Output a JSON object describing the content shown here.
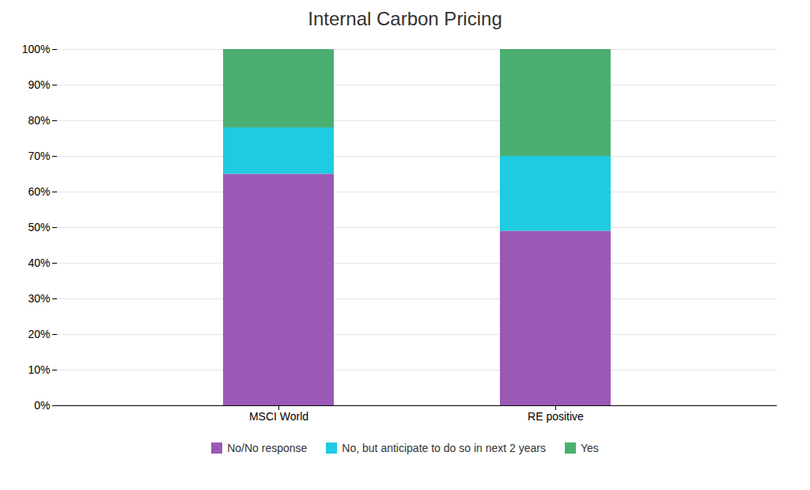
{
  "chart_data": {
    "type": "bar",
    "title": "Internal Carbon Pricing",
    "categories": [
      "MSCI World",
      "RE positive"
    ],
    "series": [
      {
        "name": "No/No response",
        "color": "#9B59B6",
        "values": [
          65,
          49
        ]
      },
      {
        "name": "No, but anticipate to do so in next 2 years",
        "color": "#1ECBE1",
        "values": [
          13,
          21
        ]
      },
      {
        "name": "Yes",
        "color": "#4CAF72",
        "values": [
          22,
          30
        ]
      }
    ],
    "stacked": true,
    "ylim": [
      0,
      100
    ],
    "yticks": [
      {
        "value": 0,
        "label": "0%"
      },
      {
        "value": 10,
        "label": "10%"
      },
      {
        "value": 20,
        "label": "20%"
      },
      {
        "value": 30,
        "label": "30%"
      },
      {
        "value": 40,
        "label": "40%"
      },
      {
        "value": 50,
        "label": "50%"
      },
      {
        "value": 60,
        "label": "60%"
      },
      {
        "value": 70,
        "label": "70%"
      },
      {
        "value": 80,
        "label": "80%"
      },
      {
        "value": 90,
        "label": "90%"
      },
      {
        "value": 100,
        "label": "100%"
      }
    ],
    "grid": true,
    "legend": "bottom"
  }
}
